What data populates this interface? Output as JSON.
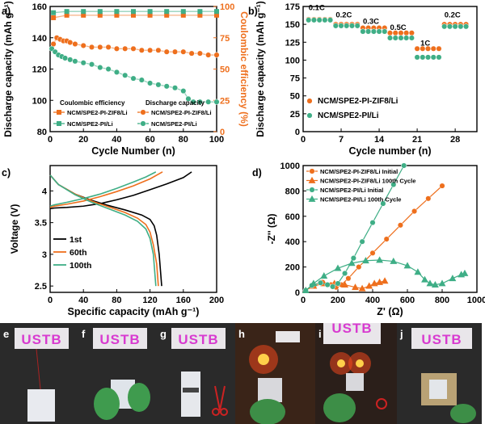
{
  "colors": {
    "orange": "#ee6f1d",
    "green": "#3fae86",
    "axis": "#000000",
    "photo_bg": "#2a2a2a"
  },
  "chart_data": [
    {
      "panel": "a)",
      "type": "scatter",
      "xlabel": "Cycle Number (n)",
      "ylabel": "Discharge capacity (mAh g⁻¹)",
      "y2label": "Coulombic efficiency (%)",
      "xlim": [
        0,
        100
      ],
      "ylim": [
        80,
        160
      ],
      "y2lim": [
        0,
        100
      ],
      "xticks": [
        0,
        20,
        40,
        60,
        80,
        100
      ],
      "yticks": [
        80,
        100,
        120,
        140,
        160
      ],
      "y2ticks": [
        0,
        25,
        50,
        75,
        100
      ],
      "legend_headers": [
        "Coulombic efficiency",
        "Discharge capacity"
      ],
      "series": [
        {
          "name": "NCM/SPE2-PI-ZIF8/Li",
          "kind": "capacity",
          "color": "orange",
          "x": [
            2,
            4,
            6,
            8,
            10,
            12,
            15,
            20,
            25,
            30,
            35,
            40,
            45,
            50,
            55,
            60,
            65,
            70,
            75,
            80,
            85,
            90,
            95,
            100
          ],
          "y": [
            136,
            140,
            139,
            138,
            138,
            137,
            136,
            135,
            134,
            134,
            134,
            133,
            133,
            133,
            132,
            132,
            132,
            131,
            131,
            131,
            130,
            130,
            129,
            129
          ]
        },
        {
          "name": "NCM/SPE2-PI/Li",
          "kind": "capacity",
          "color": "green",
          "x": [
            1,
            3,
            5,
            7,
            9,
            12,
            15,
            20,
            25,
            30,
            35,
            40,
            45,
            50,
            55,
            60,
            65,
            70,
            75,
            80,
            83,
            86,
            90,
            95,
            100
          ],
          "y": [
            133,
            131,
            129,
            128,
            127,
            126,
            125,
            124,
            123,
            121,
            120,
            118,
            116,
            114,
            113,
            111,
            110,
            109,
            108,
            106,
            101,
            99,
            99,
            99,
            99
          ]
        },
        {
          "name": "NCM/SPE2-PI-ZIF8/Li",
          "kind": "efficiency",
          "color": "orange",
          "x": [
            2,
            10,
            20,
            30,
            40,
            50,
            60,
            70,
            80,
            90,
            100
          ],
          "y": [
            91,
            93,
            93,
            93,
            93,
            93,
            93,
            93,
            93,
            93,
            93
          ]
        },
        {
          "name": "NCM/SPE2-PI/Li",
          "kind": "efficiency",
          "color": "green",
          "x": [
            2,
            10,
            20,
            30,
            40,
            50,
            60,
            70,
            80,
            90,
            100
          ],
          "y": [
            95,
            96,
            96,
            96,
            96,
            96,
            96,
            96,
            96,
            96,
            96
          ]
        }
      ]
    },
    {
      "panel": "b)",
      "type": "scatter",
      "xlabel": "Cycle number (n)",
      "ylabel": "Discharge capacity (mAh g⁻¹)",
      "xlim": [
        0,
        32
      ],
      "ylim": [
        0,
        175
      ],
      "xticks": [
        0,
        7,
        14,
        21,
        28
      ],
      "yticks": [
        0,
        25,
        50,
        75,
        100,
        125,
        150,
        175
      ],
      "rate_labels": [
        {
          "text": "0.1C",
          "x": 2.5,
          "y": 170
        },
        {
          "text": "0.2C",
          "x": 7.5,
          "y": 160
        },
        {
          "text": "0.3C",
          "x": 12.5,
          "y": 151
        },
        {
          "text": "0.5C",
          "x": 17.5,
          "y": 142
        },
        {
          "text": "1C",
          "x": 22.5,
          "y": 120
        },
        {
          "text": "0.2C",
          "x": 27.5,
          "y": 160
        }
      ],
      "series": [
        {
          "name": "NCM/SPE2-PI-ZIF8/Li",
          "color": "orange",
          "x": [
            1,
            2,
            3,
            4,
            5,
            6,
            7,
            8,
            9,
            10,
            11,
            12,
            13,
            14,
            15,
            16,
            17,
            18,
            19,
            20,
            21,
            22,
            23,
            24,
            25,
            26,
            27,
            28,
            29,
            30
          ],
          "y": [
            157,
            157,
            157,
            157,
            157,
            150,
            150,
            150,
            150,
            150,
            145,
            145,
            145,
            145,
            145,
            138,
            138,
            138,
            138,
            138,
            116,
            116,
            116,
            116,
            116,
            150,
            150,
            150,
            150,
            150
          ]
        },
        {
          "name": "NCM/SPE2-PI/Li",
          "color": "green",
          "x": [
            1,
            2,
            3,
            4,
            5,
            6,
            7,
            8,
            9,
            10,
            11,
            12,
            13,
            14,
            15,
            16,
            17,
            18,
            19,
            20,
            21,
            22,
            23,
            24,
            25,
            26,
            27,
            28,
            29,
            30
          ],
          "y": [
            156,
            156,
            156,
            156,
            156,
            148,
            148,
            148,
            148,
            148,
            140,
            140,
            140,
            140,
            140,
            131,
            131,
            131,
            131,
            131,
            104,
            104,
            104,
            104,
            104,
            147,
            147,
            147,
            147,
            147
          ]
        }
      ]
    },
    {
      "panel": "c)",
      "type": "line",
      "xlabel": "Specific capacity (mAh g⁻¹)",
      "ylabel": "Voltage (V)",
      "xlim": [
        0,
        200
      ],
      "ylim": [
        2.4,
        4.4
      ],
      "xticks": [
        0,
        40,
        80,
        120,
        160,
        200
      ],
      "yticks": [
        2.5,
        3.0,
        3.5,
        4.0
      ],
      "series": [
        {
          "name": "1st",
          "color": "#000000",
          "charge": {
            "x": [
              0,
              5,
              20,
              40,
              60,
              80,
              100,
              120,
              140,
              160,
              170
            ],
            "y": [
              3.72,
              3.73,
              3.74,
              3.76,
              3.8,
              3.86,
              3.93,
              4.02,
              4.11,
              4.21,
              4.3
            ]
          },
          "discharge": {
            "x": [
              0,
              10,
              30,
              50,
              70,
              90,
              110,
              120,
              125,
              128,
              131,
              134
            ],
            "y": [
              4.25,
              4.1,
              3.95,
              3.85,
              3.77,
              3.7,
              3.62,
              3.55,
              3.45,
              3.3,
              3.0,
              2.5
            ]
          }
        },
        {
          "name": "60th",
          "color": "orange",
          "charge": {
            "x": [
              0,
              5,
              20,
              40,
              60,
              80,
              100,
              120,
              135
            ],
            "y": [
              3.74,
              3.76,
              3.79,
              3.84,
              3.91,
              3.99,
              4.08,
              4.19,
              4.3
            ]
          },
          "discharge": {
            "x": [
              0,
              10,
              30,
              50,
              70,
              90,
              105,
              115,
              120,
              124,
              128,
              130
            ],
            "y": [
              4.25,
              4.1,
              3.95,
              3.84,
              3.75,
              3.66,
              3.57,
              3.47,
              3.35,
              3.15,
              2.85,
              2.5
            ]
          }
        },
        {
          "name": "100th",
          "color": "green",
          "charge": {
            "x": [
              0,
              5,
              20,
              40,
              60,
              80,
              100,
              115,
              127
            ],
            "y": [
              3.76,
              3.78,
              3.82,
              3.88,
              3.95,
              4.04,
              4.14,
              4.22,
              4.3
            ]
          },
          "discharge": {
            "x": [
              0,
              10,
              30,
              50,
              70,
              90,
              105,
              115,
              120,
              124,
              127
            ],
            "y": [
              4.25,
              4.1,
              3.94,
              3.82,
              3.72,
              3.62,
              3.52,
              3.4,
              3.25,
              3.0,
              2.5
            ]
          }
        }
      ]
    },
    {
      "panel": "d)",
      "type": "scatter",
      "xlabel": "Z' (Ω)",
      "ylabel": "-Z'' (Ω)",
      "xlim": [
        0,
        1000
      ],
      "ylim": [
        0,
        1000
      ],
      "xticks": [
        0,
        200,
        400,
        600,
        800,
        1000
      ],
      "yticks": [
        0,
        200,
        400,
        600,
        800,
        1000
      ],
      "series": [
        {
          "name": "NCM/SPE2-PI-ZIF8/Li Initial",
          "color": "orange",
          "marker": "circle",
          "x": [
            15,
            60,
            110,
            160,
            190,
            220,
            260,
            320,
            400,
            480,
            560,
            640,
            720,
            800
          ],
          "y": [
            15,
            60,
            80,
            60,
            40,
            60,
            110,
            200,
            310,
            420,
            530,
            640,
            740,
            840
          ]
        },
        {
          "name": "NCM/SPE2-PI-ZIF8/Li 100th Cycle",
          "color": "orange",
          "marker": "tri",
          "x": [
            15,
            60,
            120,
            180,
            240,
            300,
            340,
            380,
            410,
            440,
            470
          ],
          "y": [
            15,
            50,
            70,
            70,
            60,
            40,
            30,
            50,
            70,
            80,
            90
          ]
        },
        {
          "name": "NCM/SPE2-PI/Li Initial",
          "color": "green",
          "marker": "circle",
          "x": [
            15,
            50,
            100,
            140,
            170,
            200,
            240,
            290,
            340,
            400,
            460,
            520,
            580
          ],
          "y": [
            15,
            55,
            75,
            60,
            45,
            70,
            150,
            270,
            400,
            550,
            700,
            850,
            1000
          ]
        },
        {
          "name": "NCM/SPE2-PI/Li 100th Cycle",
          "color": "green",
          "marker": "tri",
          "x": [
            15,
            60,
            120,
            200,
            280,
            360,
            440,
            520,
            600,
            660,
            700,
            730,
            760,
            800,
            860,
            910,
            930
          ],
          "y": [
            15,
            70,
            130,
            190,
            230,
            250,
            255,
            245,
            210,
            160,
            100,
            70,
            60,
            70,
            110,
            140,
            150
          ]
        }
      ]
    }
  ],
  "photos": [
    {
      "label": "e",
      "text": "USTB"
    },
    {
      "label": "f",
      "text": "USTB"
    },
    {
      "label": "g",
      "text": "USTB"
    },
    {
      "label": "h",
      "text": ""
    },
    {
      "label": "i",
      "text": "USTB"
    },
    {
      "label": "j",
      "text": "USTB"
    }
  ]
}
